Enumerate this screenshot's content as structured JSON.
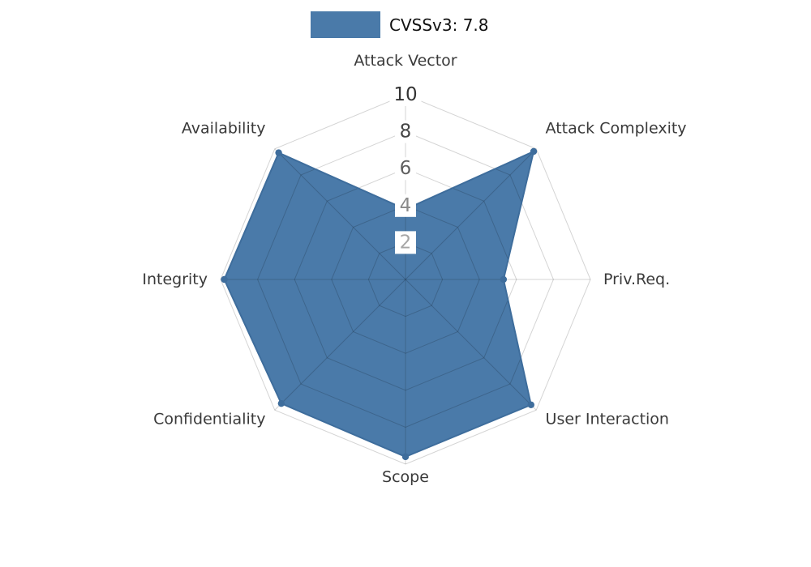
{
  "legend": {
    "label": "CVSSv3: 7.8",
    "swatch_color": "#4a7aa9"
  },
  "chart_data": {
    "type": "radar",
    "title": "CVSSv3: 7.8",
    "categories": [
      "Attack Vector",
      "Attack Complexity",
      "Priv.Req.",
      "User Interaction",
      "Scope",
      "Confidentiality",
      "Integrity",
      "Availability"
    ],
    "series": [
      {
        "name": "CVSSv3: 7.8",
        "values": [
          3.8,
          9.8,
          5.3,
          9.6,
          9.6,
          9.5,
          9.8,
          9.7
        ],
        "fill_color": "#4a7aa9",
        "line_color": "#3e6d9c"
      }
    ],
    "ticks": [
      2,
      4,
      6,
      8,
      10
    ],
    "tick_colors": [
      "#a6a6a6",
      "#8a8a8a",
      "#5f5f5f",
      "#454545",
      "#333333"
    ],
    "max": 10,
    "grid": true,
    "grid_shape": "polygon",
    "grid_color": "#d2d2d2",
    "axis_label_color": "#3a3a3a",
    "legend_position": "top",
    "start_axis": "top",
    "direction": "clockwise"
  }
}
